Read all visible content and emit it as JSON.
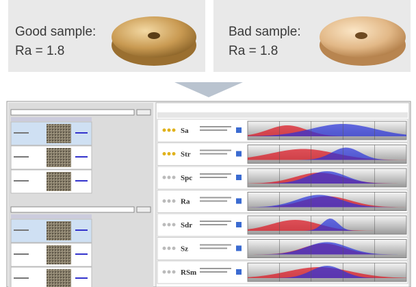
{
  "panels": [
    {
      "label": "Good sample:",
      "value": "Ra = 1.8"
    },
    {
      "label": "Bad sample:",
      "value": "Ra = 1.8"
    }
  ],
  "screenshot": {
    "parameters": [
      "Sa",
      "Str",
      "Spc",
      "Ra",
      "Sdr",
      "Sz",
      "RSm"
    ]
  }
}
